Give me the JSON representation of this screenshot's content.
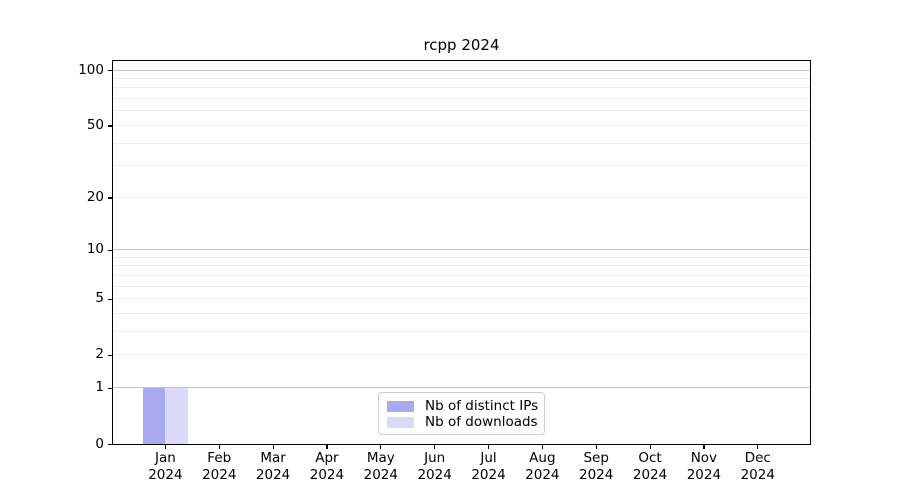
{
  "chart_data": {
    "type": "bar",
    "title": "rcpp 2024",
    "categories": [
      {
        "month": "Jan",
        "year": "2024"
      },
      {
        "month": "Feb",
        "year": "2024"
      },
      {
        "month": "Mar",
        "year": "2024"
      },
      {
        "month": "Apr",
        "year": "2024"
      },
      {
        "month": "May",
        "year": "2024"
      },
      {
        "month": "Jun",
        "year": "2024"
      },
      {
        "month": "Jul",
        "year": "2024"
      },
      {
        "month": "Aug",
        "year": "2024"
      },
      {
        "month": "Sep",
        "year": "2024"
      },
      {
        "month": "Oct",
        "year": "2024"
      },
      {
        "month": "Nov",
        "year": "2024"
      },
      {
        "month": "Dec",
        "year": "2024"
      }
    ],
    "series": [
      {
        "name": "Nb of distinct IPs",
        "color": "#a9a9f0",
        "values": [
          1,
          0,
          0,
          0,
          0,
          0,
          0,
          0,
          0,
          0,
          0,
          0
        ]
      },
      {
        "name": "Nb of downloads",
        "color": "#dadaf8",
        "values": [
          1,
          0,
          0,
          0,
          0,
          0,
          0,
          0,
          0,
          0,
          0,
          0
        ]
      }
    ],
    "yscale": "log1p",
    "ylim": [
      0,
      112
    ],
    "yticks": [
      0,
      1,
      2,
      5,
      10,
      20,
      50,
      100
    ],
    "grid_major": [
      1,
      10,
      100
    ],
    "grid_minor": [
      2,
      3,
      4,
      5,
      6,
      7,
      8,
      9,
      20,
      30,
      40,
      50,
      60,
      70,
      80,
      90
    ],
    "legend": {
      "position": "lower center"
    },
    "colors": {
      "grid_major": "#c4c4c4",
      "grid_minor": "#ebebeb",
      "spine": "#000000",
      "text": "#000000",
      "legend_border": "#cccccc",
      "legend_bg": "#ffffff"
    }
  }
}
